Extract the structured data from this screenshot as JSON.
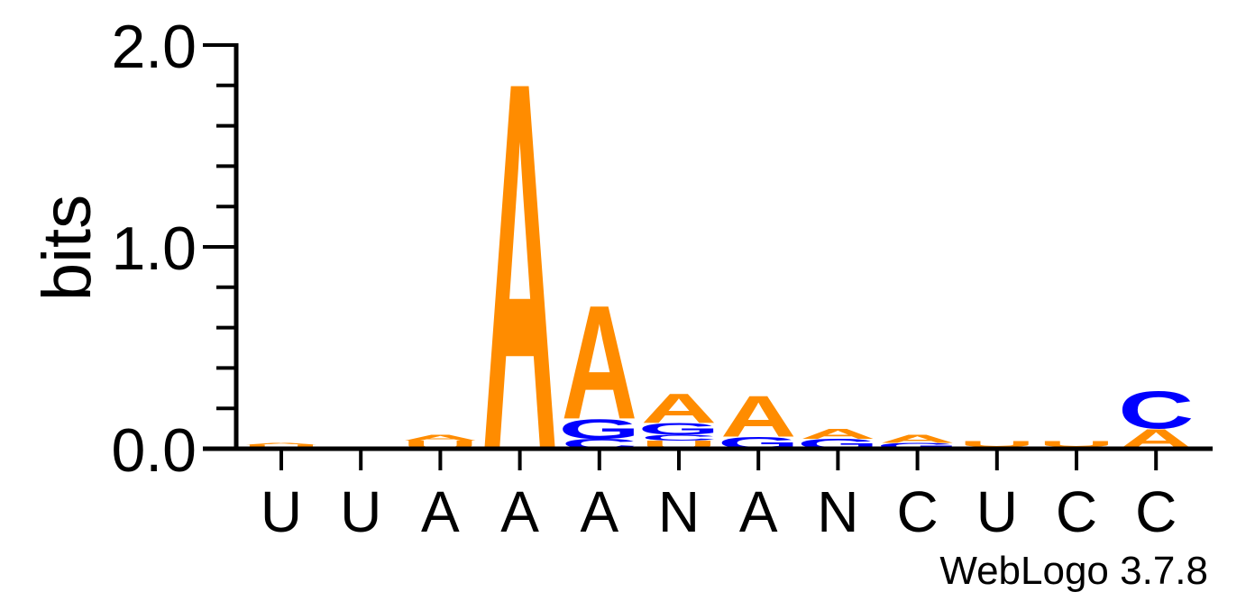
{
  "chart_data": {
    "type": "sequence-logo",
    "ylabel": "bits",
    "ylim": [
      0,
      2
    ],
    "y_ticks": [
      "0.0",
      "1.0",
      "2.0"
    ],
    "x_labels": [
      "U",
      "U",
      "A",
      "A",
      "A",
      "N",
      "A",
      "N",
      "C",
      "U",
      "C",
      "C"
    ],
    "footer": "WebLogo 3.7.8",
    "colors": {
      "A": "#ff8c00",
      "U": "#ff8c00",
      "G": "#0000ff",
      "C": "#0000ff"
    },
    "positions": [
      {
        "stack": [
          {
            "letter": "U",
            "bits": 0.02
          },
          {
            "letter": "A",
            "bits": 0.01
          }
        ]
      },
      {
        "stack": [
          {
            "letter": "C",
            "bits": 0.01
          }
        ]
      },
      {
        "stack": [
          {
            "letter": "U",
            "bits": 0.04
          },
          {
            "letter": "A",
            "bits": 0.03
          }
        ]
      },
      {
        "stack": [
          {
            "letter": "A",
            "bits": 1.88
          }
        ]
      },
      {
        "stack": [
          {
            "letter": "C",
            "bits": 0.05
          },
          {
            "letter": "G",
            "bits": 0.1
          },
          {
            "letter": "A",
            "bits": 0.58
          }
        ]
      },
      {
        "stack": [
          {
            "letter": "U",
            "bits": 0.04
          },
          {
            "letter": "C",
            "bits": 0.03
          },
          {
            "letter": "G",
            "bits": 0.06
          },
          {
            "letter": "A",
            "bits": 0.15
          }
        ]
      },
      {
        "stack": [
          {
            "letter": "G",
            "bits": 0.06
          },
          {
            "letter": "A",
            "bits": 0.21
          }
        ]
      },
      {
        "stack": [
          {
            "letter": "G",
            "bits": 0.05
          },
          {
            "letter": "A",
            "bits": 0.05
          }
        ]
      },
      {
        "stack": [
          {
            "letter": "G",
            "bits": 0.03
          },
          {
            "letter": "A",
            "bits": 0.04
          }
        ]
      },
      {
        "stack": [
          {
            "letter": "C",
            "bits": 0.01
          },
          {
            "letter": "U",
            "bits": 0.03
          }
        ]
      },
      {
        "stack": [
          {
            "letter": "C",
            "bits": 0.01
          },
          {
            "letter": "U",
            "bits": 0.03
          }
        ]
      },
      {
        "stack": [
          {
            "letter": "A",
            "bits": 0.1
          },
          {
            "letter": "C",
            "bits": 0.19
          }
        ]
      }
    ]
  }
}
